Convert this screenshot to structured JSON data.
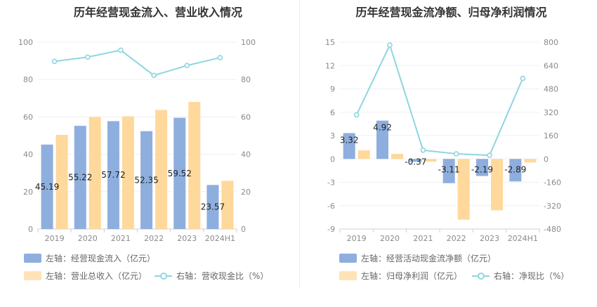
{
  "colors": {
    "blue": "#8eaede",
    "orange": "#ffd89b",
    "line": "#8fd6df",
    "grid": "#eef0f5",
    "axis": "#cfcfcf"
  },
  "chart_data": [
    {
      "type": "bar",
      "title": "历年经营现金流入、营业收入情况",
      "categories": [
        "2019",
        "2020",
        "2021",
        "2022",
        "2023",
        "2024H1"
      ],
      "y_left": {
        "ylim": [
          0,
          100
        ],
        "ticks": [
          "0",
          "20",
          "40",
          "60",
          "80",
          "100"
        ]
      },
      "y_right": {
        "ylim": [
          0,
          100
        ],
        "ticks": [
          "0",
          "20",
          "40",
          "60",
          "80",
          "100"
        ]
      },
      "series": [
        {
          "name": "左轴：经营现金流入（亿元）",
          "type": "bar",
          "axis": "left",
          "values": [
            45.19,
            55.22,
            57.72,
            52.35,
            59.52,
            23.57
          ],
          "labels": [
            "45.19",
            "55.22",
            "57.72",
            "52.35",
            "59.52",
            "23.57"
          ]
        },
        {
          "name": "左轴：营业总收入（亿元）",
          "type": "bar",
          "axis": "left",
          "values": [
            50.4,
            60.0,
            60.3,
            63.7,
            68.0,
            25.8
          ]
        },
        {
          "name": "右轴：营收现金比（%）",
          "type": "line",
          "axis": "right",
          "values": [
            89.7,
            92.0,
            95.7,
            82.2,
            87.5,
            91.7
          ]
        }
      ],
      "legend": [
        "左轴：经营现金流入（亿元）",
        "左轴：营业总收入（亿元）",
        "右轴：营收现金比（%）"
      ]
    },
    {
      "type": "bar",
      "title": "历年经营现金流净额、归母净利润情况",
      "categories": [
        "2019",
        "2020",
        "2021",
        "2022",
        "2023",
        "2024H1"
      ],
      "y_left": {
        "ylim": [
          -9,
          15
        ],
        "ticks": [
          "-9",
          "-6",
          "-3",
          "0",
          "3",
          "6",
          "9",
          "12",
          "15"
        ]
      },
      "y_right": {
        "ylim": [
          -480,
          800
        ],
        "ticks": [
          "-480",
          "-320",
          "-160",
          "0",
          "160",
          "320",
          "480",
          "640",
          "800"
        ]
      },
      "series": [
        {
          "name": "左轴：经营活动现金流净额（亿元）",
          "type": "bar",
          "axis": "left",
          "values": [
            3.32,
            4.92,
            -0.37,
            -3.11,
            -2.19,
            -2.89
          ],
          "labels": [
            "3.32",
            "4.92",
            "-0.37",
            "-3.11",
            "-2.19",
            "-2.89"
          ]
        },
        {
          "name": "左轴：归母净利润（亿元）",
          "type": "bar",
          "axis": "left",
          "values": [
            1.1,
            0.65,
            -0.35,
            -7.8,
            -6.6,
            -0.45
          ]
        },
        {
          "name": "右轴：净现比（%）",
          "type": "line",
          "axis": "right",
          "values": [
            302,
            780,
            60,
            35,
            25,
            552
          ]
        }
      ],
      "legend": [
        "左轴：经营活动现金流净额（亿元）",
        "左轴：归母净利润（亿元）",
        "右轴：净现比（%）"
      ]
    }
  ]
}
